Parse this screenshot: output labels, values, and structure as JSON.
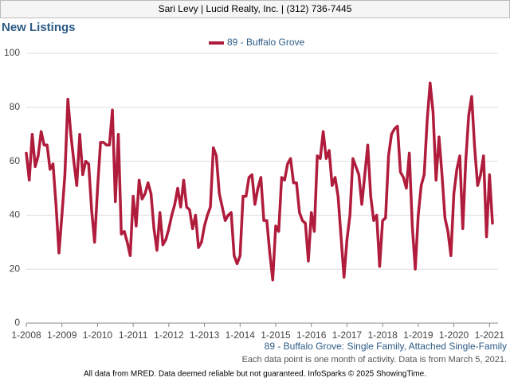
{
  "header": {
    "text": "Sari Levy | Lucid Realty, Inc. | (312) 736-7445"
  },
  "chart_data": {
    "type": "line",
    "title": "New Listings",
    "legend": "top",
    "series": [
      {
        "name": "89 - Buffalo Grove",
        "color": "#b01c3c",
        "values": [
          63,
          53,
          70,
          58,
          62,
          71,
          66,
          66,
          57,
          59,
          44,
          26,
          40,
          55,
          83,
          70,
          60,
          51,
          70,
          55,
          60,
          59,
          42,
          30,
          50,
          67,
          67,
          66,
          66,
          79,
          45,
          70,
          33,
          34,
          30,
          25,
          47,
          36,
          53,
          46,
          48,
          52,
          48,
          35,
          27,
          41,
          29,
          31,
          35,
          40,
          44,
          50,
          43,
          53,
          43,
          42,
          35,
          40,
          28,
          30,
          36,
          40,
          43,
          65,
          62,
          48,
          43,
          38,
          40,
          41,
          25,
          22,
          25,
          47,
          47,
          54,
          55,
          44,
          50,
          54,
          38,
          38,
          26,
          16,
          36,
          34,
          54,
          53,
          59,
          61,
          52,
          52,
          41,
          38,
          37,
          23,
          41,
          34,
          62,
          61,
          71,
          61,
          64,
          51,
          54,
          47,
          32,
          17,
          31,
          40,
          61,
          58,
          55,
          44,
          55,
          66,
          47,
          38,
          40,
          21,
          38,
          39,
          62,
          70,
          72,
          73,
          56,
          54,
          50,
          63,
          36,
          20,
          40,
          51,
          55,
          75,
          89,
          78,
          53,
          69,
          55,
          39,
          34,
          25,
          48,
          57,
          62,
          35,
          60,
          77,
          84,
          65,
          51,
          55,
          62,
          32,
          55,
          37
        ]
      }
    ],
    "categories": [
      "1-2008",
      null,
      null,
      null,
      null,
      null,
      null,
      null,
      null,
      null,
      null,
      null,
      "1-2009",
      null,
      null,
      null,
      null,
      null,
      null,
      null,
      null,
      null,
      null,
      null,
      "1-2010",
      null,
      null,
      null,
      null,
      null,
      null,
      null,
      null,
      null,
      null,
      null,
      "1-2011",
      null,
      null,
      null,
      null,
      null,
      null,
      null,
      null,
      null,
      null,
      null,
      "1-2012",
      null,
      null,
      null,
      null,
      null,
      null,
      null,
      null,
      null,
      null,
      null,
      "1-2013",
      null,
      null,
      null,
      null,
      null,
      null,
      null,
      null,
      null,
      null,
      null,
      "1-2014",
      null,
      null,
      null,
      null,
      null,
      null,
      null,
      null,
      null,
      null,
      null,
      "1-2015",
      null,
      null,
      null,
      null,
      null,
      null,
      null,
      null,
      null,
      null,
      null,
      "1-2016",
      null,
      null,
      null,
      null,
      null,
      null,
      null,
      null,
      null,
      null,
      null,
      "1-2017",
      null,
      null,
      null,
      null,
      null,
      null,
      null,
      null,
      null,
      null,
      null,
      "1-2018",
      null,
      null,
      null,
      null,
      null,
      null,
      null,
      null,
      null,
      null,
      null,
      "1-2019",
      null,
      null,
      null,
      null,
      null,
      null,
      null,
      null,
      null,
      null,
      null,
      "1-2020",
      null,
      null,
      null,
      null,
      null,
      null,
      null,
      null,
      null,
      null,
      null,
      "1-2021",
      null
    ],
    "ylim": [
      0,
      100
    ],
    "yticks": [
      0,
      20,
      40,
      60,
      80,
      100
    ],
    "grid": true,
    "caption": "89 - Buffalo Grove: Single Family, Attached Single-Family",
    "note": "Each data point is one month of activity. Data is from March 5, 2021.",
    "footer": "All data from MRED. Data deemed reliable but not guaranteed. InfoSparks © 2025 ShowingTime."
  }
}
